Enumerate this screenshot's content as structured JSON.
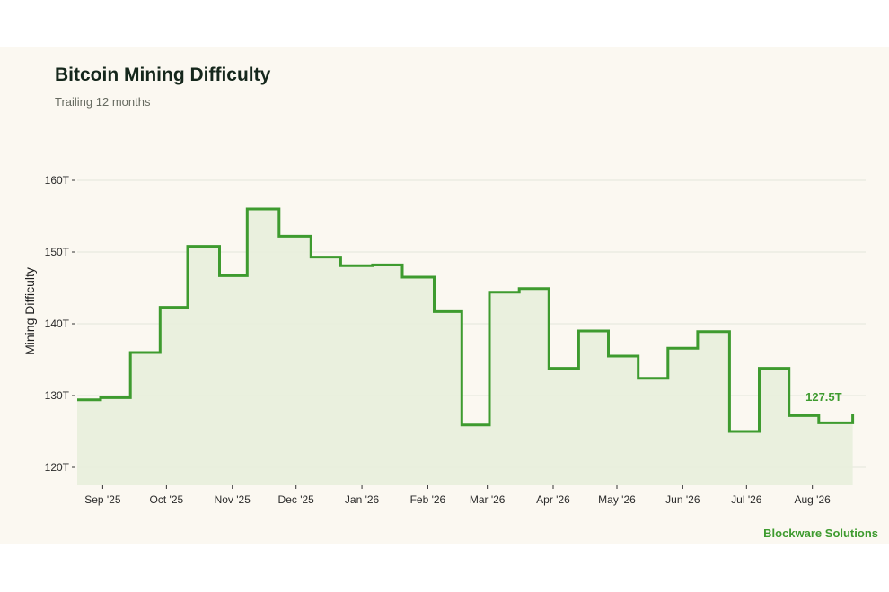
{
  "header": {
    "title": "Bitcoin Mining Difficulty",
    "subtitle": "Trailing 12 months"
  },
  "footer": {
    "brand": "Blockware Solutions"
  },
  "colors": {
    "line": "#3e9b2f",
    "fill": "#e8eedb",
    "background": "#fbf8f1",
    "grid": "#e3e6da"
  },
  "chart_data": {
    "type": "line",
    "step": true,
    "title": "Bitcoin Mining Difficulty",
    "subtitle": "Trailing 12 months",
    "xlabel": "",
    "ylabel": "Mining Difficulty",
    "ylim": [
      117.5,
      162.5
    ],
    "xlim": [
      "2025-08-20",
      "2026-08-21"
    ],
    "yticks": [
      120,
      130,
      140,
      150,
      160
    ],
    "ytick_labels": [
      "120T",
      "130T",
      "140T",
      "150T",
      "160T"
    ],
    "xticks": [
      "2025-09-01",
      "2025-10-01",
      "2025-11-01",
      "2025-12-01",
      "2026-01-01",
      "2026-02-01",
      "2026-03-01",
      "2026-04-01",
      "2026-05-01",
      "2026-06-01",
      "2026-07-01",
      "2026-08-01"
    ],
    "xtick_labels": [
      "Sep '25",
      "Oct '25",
      "Nov '25",
      "Dec '25",
      "Jan '26",
      "Feb '26",
      "Mar '26",
      "Apr '26",
      "May '26",
      "Jun '26",
      "Jul '26",
      "Aug '26"
    ],
    "grid": true,
    "area_fill": true,
    "unit": "T",
    "series": [
      {
        "x": [
          "2025-08-20",
          "2025-08-31",
          "2025-09-14",
          "2025-09-28",
          "2025-10-11",
          "2025-10-26",
          "2025-11-08",
          "2025-11-23",
          "2025-12-08",
          "2025-12-22",
          "2026-01-06",
          "2026-01-20",
          "2026-02-04",
          "2026-02-17",
          "2026-03-02",
          "2026-03-16",
          "2026-03-30",
          "2026-04-13",
          "2026-04-27",
          "2026-05-11",
          "2026-05-25",
          "2026-06-08",
          "2026-06-23",
          "2026-07-07",
          "2026-07-21",
          "2026-08-04",
          "2026-08-20"
        ],
        "values": [
          129.4,
          129.7,
          136.0,
          142.3,
          150.8,
          146.7,
          156.0,
          152.2,
          149.3,
          148.1,
          148.2,
          146.5,
          141.7,
          125.9,
          144.4,
          144.9,
          133.8,
          139.0,
          135.5,
          132.4,
          136.6,
          138.9,
          125.0,
          133.8,
          127.2,
          126.2,
          127.5
        ]
      }
    ],
    "annotations": [
      {
        "x": "2026-08-20",
        "y": 127.5,
        "text": "127.5T"
      }
    ]
  }
}
